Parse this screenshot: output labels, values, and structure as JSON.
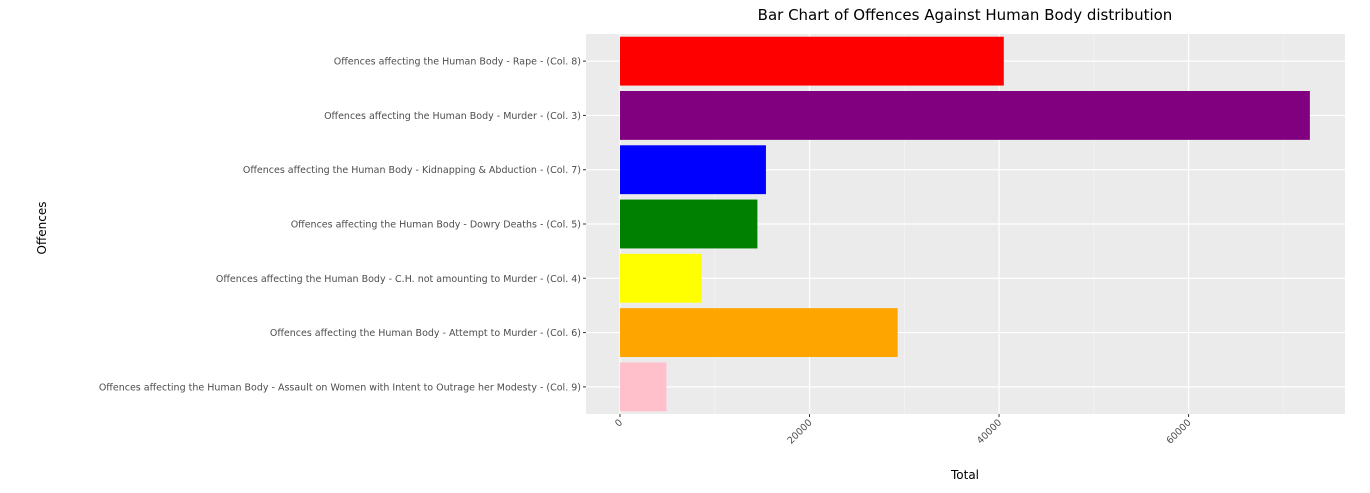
{
  "chart_data": {
    "type": "bar",
    "orientation": "horizontal",
    "title": "Bar Chart of Offences Against Human Body distribution",
    "xlabel": "Total",
    "ylabel": "Offences",
    "xlim": [
      0,
      75000
    ],
    "x_ticks": [
      0,
      20000,
      40000,
      60000
    ],
    "x_tick_labels": [
      "0",
      "20000",
      "40000",
      "60000"
    ],
    "grid": true,
    "legend": "none",
    "background": "#ebebeb",
    "categories": [
      "Offences affecting the Human Body - Rape - (Col. 8)",
      "Offences affecting the Human Body - Murder - (Col. 3)",
      "Offences affecting the Human Body - Kidnapping & Abduction - (Col. 7)",
      "Offences affecting the Human Body - Dowry Deaths - (Col. 5)",
      "Offences affecting the Human Body - C.H. not amounting to Murder - (Col. 4)",
      "Offences affecting the Human Body - Attempt to Murder - (Col. 6)",
      "Offences affecting the Human Body - Assault on Women with Intent to Outrage her Modesty - (Col. 9)"
    ],
    "values": [
      40500,
      72800,
      15400,
      14500,
      8600,
      29300,
      4900
    ],
    "colors": [
      "#ff0000",
      "#800080",
      "#0000ff",
      "#008000",
      "#ffff00",
      "#ffa500",
      "#ffc0cb"
    ]
  }
}
